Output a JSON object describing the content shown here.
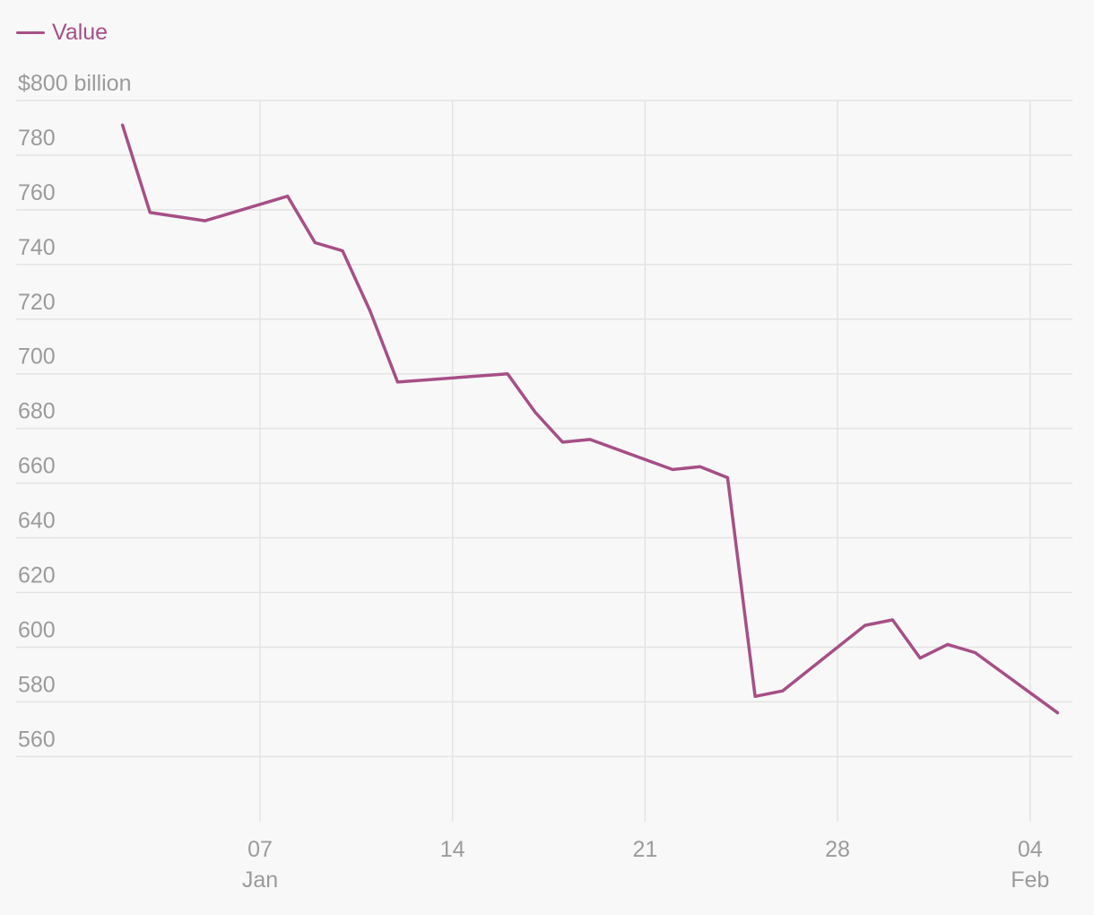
{
  "legend": {
    "label": "Value",
    "color": "#a64f86"
  },
  "chart_data": {
    "type": "line",
    "title": "",
    "xlabel": "",
    "ylabel": "$800 billion",
    "ylim": [
      546,
      800
    ],
    "xlim": [
      "2018-01-02",
      "2018-02-05"
    ],
    "grid": true,
    "legend_position": "top-left",
    "y_ticks": [
      {
        "value": 800,
        "label": "$800 billion"
      },
      {
        "value": 780,
        "label": "780"
      },
      {
        "value": 760,
        "label": "760"
      },
      {
        "value": 740,
        "label": "740"
      },
      {
        "value": 720,
        "label": "720"
      },
      {
        "value": 700,
        "label": "700"
      },
      {
        "value": 680,
        "label": "680"
      },
      {
        "value": 660,
        "label": "660"
      },
      {
        "value": 640,
        "label": "640"
      },
      {
        "value": 620,
        "label": "620"
      },
      {
        "value": 600,
        "label": "600"
      },
      {
        "value": 580,
        "label": "580"
      },
      {
        "value": 560,
        "label": "560"
      }
    ],
    "x_ticks": [
      {
        "date": "2018-01-07",
        "label": "07",
        "sublabel": "Jan"
      },
      {
        "date": "2018-01-14",
        "label": "14",
        "sublabel": ""
      },
      {
        "date": "2018-01-21",
        "label": "21",
        "sublabel": ""
      },
      {
        "date": "2018-01-28",
        "label": "28",
        "sublabel": ""
      },
      {
        "date": "2018-02-04",
        "label": "04",
        "sublabel": "Feb"
      }
    ],
    "series": [
      {
        "name": "Value",
        "color": "#a64f86",
        "points": [
          {
            "x": "2018-01-02",
            "y": 791
          },
          {
            "x": "2018-01-03",
            "y": 759
          },
          {
            "x": "2018-01-05",
            "y": 756
          },
          {
            "x": "2018-01-08",
            "y": 765
          },
          {
            "x": "2018-01-09",
            "y": 748
          },
          {
            "x": "2018-01-10",
            "y": 745
          },
          {
            "x": "2018-01-11",
            "y": 723
          },
          {
            "x": "2018-01-12",
            "y": 697
          },
          {
            "x": "2018-01-16",
            "y": 700
          },
          {
            "x": "2018-01-17",
            "y": 686
          },
          {
            "x": "2018-01-18",
            "y": 675
          },
          {
            "x": "2018-01-19",
            "y": 676
          },
          {
            "x": "2018-01-22",
            "y": 665
          },
          {
            "x": "2018-01-23",
            "y": 666
          },
          {
            "x": "2018-01-24",
            "y": 662
          },
          {
            "x": "2018-01-25",
            "y": 582
          },
          {
            "x": "2018-01-26",
            "y": 584
          },
          {
            "x": "2018-01-29",
            "y": 608
          },
          {
            "x": "2018-01-30",
            "y": 610
          },
          {
            "x": "2018-01-31",
            "y": 596
          },
          {
            "x": "2018-02-01",
            "y": 601
          },
          {
            "x": "2018-02-02",
            "y": 598
          },
          {
            "x": "2018-02-05",
            "y": 576
          }
        ]
      }
    ]
  }
}
